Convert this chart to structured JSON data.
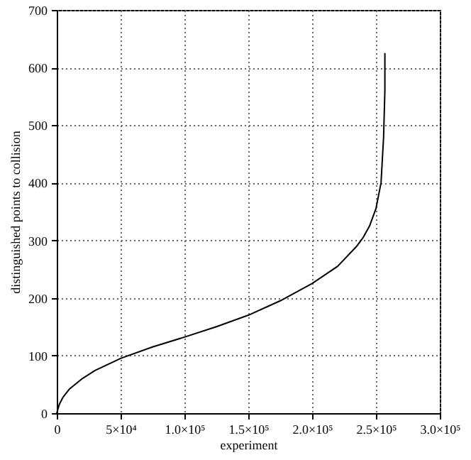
{
  "chart_data": {
    "type": "line",
    "xlabel": "experiment",
    "ylabel": "distinguished points to collision",
    "x": [
      0,
      2000,
      5000,
      10000,
      20000,
      30000,
      50000,
      75000,
      100000,
      125000,
      150000,
      175000,
      200000,
      220000,
      235000,
      240000,
      245000,
      250000,
      254000,
      256000,
      257000,
      257000
    ],
    "series": [
      {
        "color": "#000000",
        "values": [
          0,
          15,
          28,
          42,
          60,
          74,
          95,
          115,
          132,
          150,
          170,
          195,
          225,
          255,
          290,
          305,
          325,
          355,
          400,
          480,
          560,
          625
        ]
      }
    ],
    "xlim": [
      0,
      300000
    ],
    "ylim": [
      0,
      700
    ],
    "xticks": [
      0,
      {
        "value": 50000,
        "label": "5×10⁴"
      },
      {
        "value": 100000,
        "label": "1.0×10⁵"
      },
      {
        "value": 150000,
        "label": "1.5×10⁵"
      },
      {
        "value": 200000,
        "label": "2.0×10⁵"
      },
      {
        "value": 250000,
        "label": "2.5×10⁵"
      },
      {
        "value": 300000,
        "label": "3.0×10⁵"
      }
    ],
    "yticks": [
      0,
      100,
      200,
      300,
      400,
      500,
      600,
      700
    ],
    "grid": true,
    "marker": "none",
    "line_style": "solid"
  }
}
